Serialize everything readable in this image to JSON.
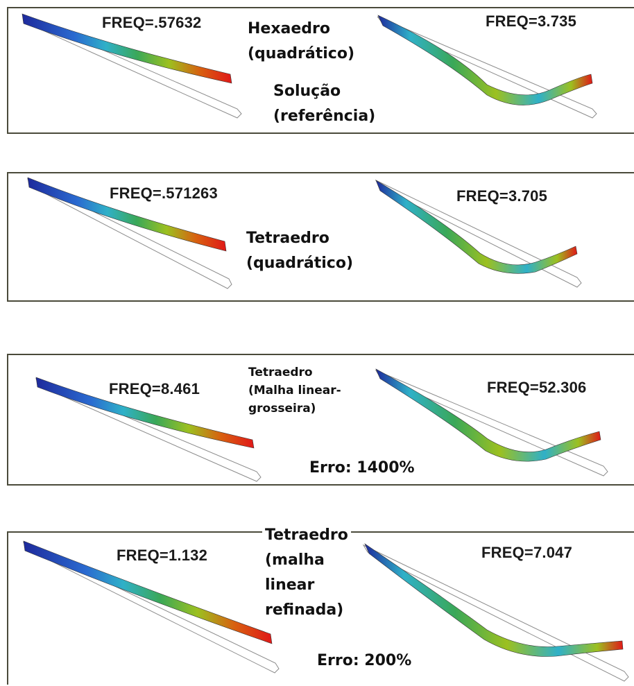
{
  "panels": [
    {
      "freq_left": "FREQ=.57632",
      "freq_right": "FREQ=3.735",
      "caption": "Hexaedro\n(quadrático)",
      "caption2": "Solução\n(referência)",
      "error": ""
    },
    {
      "freq_left": "FREQ=.571263",
      "freq_right": "FREQ=3.705",
      "caption": "Tetraedro\n(quadrático)",
      "caption2": "",
      "error": ""
    },
    {
      "freq_left": "FREQ=8.461",
      "freq_right": "FREQ=52.306",
      "caption": "Tetraedro\n(Malha linear-\ngrosseira)",
      "caption2": "",
      "error": "Erro: 1400%"
    },
    {
      "freq_left": "FREQ=1.132",
      "freq_right": "FREQ=7.047",
      "caption": "Tetraedro\n(malha\nlinear\nrefinada)",
      "caption2": "",
      "error": "Erro: 200%"
    }
  ],
  "colors": {
    "beam_gradient": [
      "#1e2a9c",
      "#2a6ad0",
      "#2fb0c8",
      "#3aa858",
      "#9cc020",
      "#c8b018",
      "#d86010",
      "#e01818"
    ],
    "outline": "#8a8a8a",
    "frame": "#4a4a3a"
  }
}
